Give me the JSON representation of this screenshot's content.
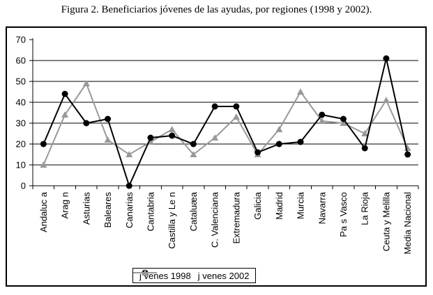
{
  "figure_title": "Figura 2. Beneficiarios jóvenes de las ayudas, por regiones (1998 y 2002).",
  "colors": {
    "series_1998": "#000000",
    "series_2002": "#999999",
    "axis": "#000000",
    "grid": "#000000",
    "background": "#ffffff"
  },
  "chart_data": {
    "type": "line",
    "categories": [
      "Andaluc a",
      "Arag n",
      "Asturias",
      "Baleares",
      "Canarias",
      "Cantabria",
      "Castilla y Le n",
      "Cataluæa",
      "C. Valenciana",
      "Extremadura",
      "Galicia",
      "Madrid",
      "Murcia",
      "Navarra",
      "Pa s Vasco",
      "La Rioja",
      "Ceuta y Melilla",
      "Media Nacional"
    ],
    "series": [
      {
        "name": "j venes 1998",
        "marker": "circle",
        "color": "#000000",
        "values": [
          20,
          44,
          30,
          32,
          0,
          23,
          24,
          20,
          38,
          38,
          16,
          20,
          21,
          34,
          32,
          18,
          61,
          15
        ]
      },
      {
        "name": "j venes 2002",
        "marker": "triangle",
        "color": "#999999",
        "values": [
          10,
          34,
          49,
          22,
          15,
          21,
          27,
          15,
          23,
          33,
          15,
          27,
          45,
          31,
          30,
          25,
          41,
          18
        ]
      }
    ],
    "title": "",
    "xlabel": "",
    "ylabel": "",
    "ylim": [
      0,
      70
    ],
    "yticks": [
      0,
      10,
      20,
      30,
      40,
      50,
      60,
      70
    ],
    "grid": "horizontal",
    "legend_position": "bottom-center",
    "x_label_rotation": -90
  }
}
